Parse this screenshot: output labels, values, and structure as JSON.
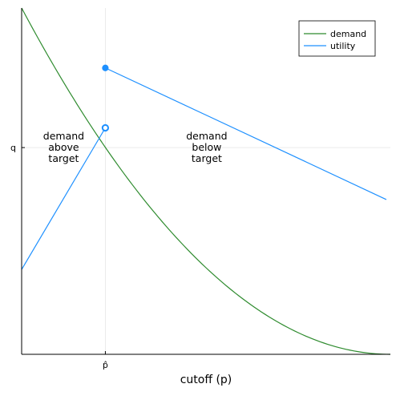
{
  "chart_data": {
    "type": "line",
    "xlabel": "cutoff (p)",
    "ylabel": "",
    "xlim": [
      0,
      1
    ],
    "ylim": [
      0,
      1
    ],
    "xticks": [
      {
        "value": 0.227,
        "label": "p̂"
      }
    ],
    "yticks": [
      {
        "value": 0.597,
        "label": "q"
      }
    ],
    "grid": true,
    "legend_position": "top-right",
    "series": [
      {
        "name": "demand",
        "color": "#2e8b2e",
        "function": "(1 - x)^2",
        "x": [
          0,
          0.1,
          0.2,
          0.3,
          0.4,
          0.5,
          0.6,
          0.7,
          0.8,
          0.9,
          1.0
        ],
        "y": [
          1.0,
          0.81,
          0.64,
          0.49,
          0.36,
          0.25,
          0.16,
          0.09,
          0.04,
          0.01,
          0.0
        ]
      },
      {
        "name": "utility",
        "color": "#1e90ff",
        "segments": [
          {
            "x": [
              0,
              0.227
            ],
            "y": [
              0.245,
              0.654
            ]
          },
          {
            "x": [
              0.227,
              0.989
            ],
            "y": [
              0.827,
              0.447
            ]
          }
        ],
        "markers": [
          {
            "x": 0.227,
            "y": 0.827,
            "style": "filled"
          },
          {
            "x": 0.227,
            "y": 0.654,
            "style": "open"
          }
        ]
      }
    ],
    "annotations": [
      {
        "lines": [
          "demand",
          "above",
          "target"
        ],
        "x": 0.114,
        "y": 0.597
      },
      {
        "lines": [
          "demand",
          "below",
          "target"
        ],
        "x": 0.502,
        "y": 0.597
      }
    ]
  }
}
